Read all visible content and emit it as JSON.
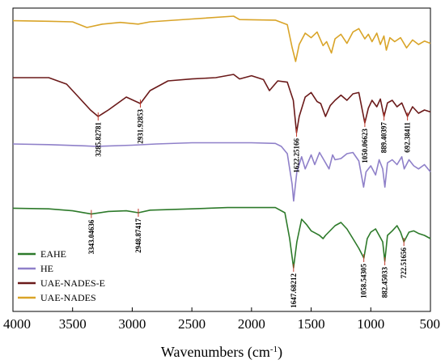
{
  "chart_data": {
    "type": "line",
    "xlabel": "Wavenumbers (cm",
    "xlabel_sup": "-1",
    "xlabel_end": ")",
    "xlim": [
      4000,
      500
    ],
    "x_reversed": true,
    "x_ticks": [
      4000,
      3500,
      3000,
      2500,
      2000,
      1500,
      1000,
      500
    ],
    "y_axis_visible": false,
    "grid": false,
    "legend_position": "bottom-left",
    "series": [
      {
        "name": "UAE-NADES",
        "color": "#d9a428",
        "points": [
          [
            4000,
            0.92
          ],
          [
            3700,
            0.91
          ],
          [
            3500,
            0.9
          ],
          [
            3380,
            0.8
          ],
          [
            3250,
            0.86
          ],
          [
            3100,
            0.89
          ],
          [
            2950,
            0.86
          ],
          [
            2850,
            0.9
          ],
          [
            2500,
            0.95
          ],
          [
            2150,
            1.0
          ],
          [
            2100,
            0.94
          ],
          [
            1800,
            0.93
          ],
          [
            1700,
            0.85
          ],
          [
            1660,
            0.45
          ],
          [
            1630,
            0.2
          ],
          [
            1600,
            0.5
          ],
          [
            1550,
            0.7
          ],
          [
            1500,
            0.62
          ],
          [
            1450,
            0.72
          ],
          [
            1400,
            0.48
          ],
          [
            1370,
            0.55
          ],
          [
            1330,
            0.35
          ],
          [
            1300,
            0.6
          ],
          [
            1250,
            0.68
          ],
          [
            1200,
            0.52
          ],
          [
            1150,
            0.72
          ],
          [
            1100,
            0.78
          ],
          [
            1050,
            0.6
          ],
          [
            1020,
            0.68
          ],
          [
            990,
            0.55
          ],
          [
            950,
            0.7
          ],
          [
            920,
            0.5
          ],
          [
            890,
            0.65
          ],
          [
            870,
            0.4
          ],
          [
            840,
            0.62
          ],
          [
            800,
            0.55
          ],
          [
            750,
            0.62
          ],
          [
            700,
            0.44
          ],
          [
            650,
            0.58
          ],
          [
            600,
            0.5
          ],
          [
            550,
            0.56
          ],
          [
            500,
            0.52
          ]
        ]
      },
      {
        "name": "UAE-NADES-E",
        "color": "#6b1a1a",
        "points": [
          [
            4000,
            0.95
          ],
          [
            3700,
            0.95
          ],
          [
            3550,
            0.85
          ],
          [
            3450,
            0.65
          ],
          [
            3350,
            0.45
          ],
          [
            3285.83,
            0.35
          ],
          [
            3200,
            0.45
          ],
          [
            3050,
            0.65
          ],
          [
            2931.93,
            0.55
          ],
          [
            2850,
            0.75
          ],
          [
            2700,
            0.9
          ],
          [
            2500,
            0.93
          ],
          [
            2300,
            0.95
          ],
          [
            2150,
            1.0
          ],
          [
            2100,
            0.93
          ],
          [
            2000,
            0.98
          ],
          [
            1900,
            0.92
          ],
          [
            1850,
            0.75
          ],
          [
            1780,
            0.9
          ],
          [
            1700,
            0.88
          ],
          [
            1650,
            0.6
          ],
          [
            1622.25,
            0.1
          ],
          [
            1600,
            0.35
          ],
          [
            1550,
            0.65
          ],
          [
            1500,
            0.72
          ],
          [
            1450,
            0.58
          ],
          [
            1420,
            0.55
          ],
          [
            1380,
            0.35
          ],
          [
            1340,
            0.52
          ],
          [
            1300,
            0.6
          ],
          [
            1250,
            0.68
          ],
          [
            1200,
            0.6
          ],
          [
            1150,
            0.7
          ],
          [
            1100,
            0.72
          ],
          [
            1050.07,
            0.25
          ],
          [
            1020,
            0.48
          ],
          [
            990,
            0.6
          ],
          [
            950,
            0.5
          ],
          [
            920,
            0.62
          ],
          [
            889.4,
            0.35
          ],
          [
            860,
            0.56
          ],
          [
            820,
            0.6
          ],
          [
            780,
            0.5
          ],
          [
            740,
            0.56
          ],
          [
            692.38,
            0.35
          ],
          [
            650,
            0.5
          ],
          [
            600,
            0.4
          ],
          [
            550,
            0.45
          ],
          [
            500,
            0.42
          ]
        ]
      },
      {
        "name": "HE",
        "color": "#8f80c9",
        "points": [
          [
            4000,
            0.96
          ],
          [
            3700,
            0.95
          ],
          [
            3400,
            0.93
          ],
          [
            3300,
            0.92
          ],
          [
            3000,
            0.94
          ],
          [
            2800,
            0.96
          ],
          [
            2500,
            0.98
          ],
          [
            2200,
            0.98
          ],
          [
            2000,
            0.98
          ],
          [
            1800,
            0.97
          ],
          [
            1750,
            0.92
          ],
          [
            1700,
            0.8
          ],
          [
            1660,
            0.3
          ],
          [
            1647,
            0.02
          ],
          [
            1620,
            0.5
          ],
          [
            1580,
            0.75
          ],
          [
            1550,
            0.55
          ],
          [
            1500,
            0.78
          ],
          [
            1470,
            0.62
          ],
          [
            1430,
            0.82
          ],
          [
            1400,
            0.72
          ],
          [
            1350,
            0.55
          ],
          [
            1320,
            0.78
          ],
          [
            1300,
            0.7
          ],
          [
            1250,
            0.72
          ],
          [
            1200,
            0.8
          ],
          [
            1150,
            0.82
          ],
          [
            1100,
            0.68
          ],
          [
            1060,
            0.25
          ],
          [
            1040,
            0.5
          ],
          [
            1000,
            0.6
          ],
          [
            960,
            0.45
          ],
          [
            930,
            0.7
          ],
          [
            900,
            0.55
          ],
          [
            882,
            0.25
          ],
          [
            860,
            0.65
          ],
          [
            820,
            0.7
          ],
          [
            780,
            0.62
          ],
          [
            740,
            0.75
          ],
          [
            720,
            0.55
          ],
          [
            680,
            0.7
          ],
          [
            640,
            0.6
          ],
          [
            600,
            0.55
          ],
          [
            550,
            0.62
          ],
          [
            500,
            0.5
          ]
        ]
      },
      {
        "name": "EAHE",
        "color": "#2d7a2a",
        "points": [
          [
            4000,
            0.97
          ],
          [
            3700,
            0.96
          ],
          [
            3500,
            0.93
          ],
          [
            3343.05,
            0.88
          ],
          [
            3200,
            0.92
          ],
          [
            3050,
            0.93
          ],
          [
            2948.87,
            0.9
          ],
          [
            2850,
            0.94
          ],
          [
            2500,
            0.96
          ],
          [
            2200,
            0.98
          ],
          [
            2000,
            0.98
          ],
          [
            1800,
            0.98
          ],
          [
            1720,
            0.9
          ],
          [
            1680,
            0.5
          ],
          [
            1647.68,
            0.05
          ],
          [
            1620,
            0.45
          ],
          [
            1580,
            0.8
          ],
          [
            1540,
            0.72
          ],
          [
            1500,
            0.62
          ],
          [
            1460,
            0.58
          ],
          [
            1430,
            0.55
          ],
          [
            1400,
            0.5
          ],
          [
            1380,
            0.55
          ],
          [
            1300,
            0.7
          ],
          [
            1250,
            0.75
          ],
          [
            1200,
            0.65
          ],
          [
            1150,
            0.5
          ],
          [
            1100,
            0.35
          ],
          [
            1058.54,
            0.2
          ],
          [
            1030,
            0.5
          ],
          [
            1000,
            0.6
          ],
          [
            960,
            0.65
          ],
          [
            930,
            0.55
          ],
          [
            900,
            0.45
          ],
          [
            882.45,
            0.15
          ],
          [
            860,
            0.55
          ],
          [
            820,
            0.62
          ],
          [
            780,
            0.7
          ],
          [
            750,
            0.6
          ],
          [
            722.52,
            0.45
          ],
          [
            680,
            0.6
          ],
          [
            640,
            0.62
          ],
          [
            600,
            0.58
          ],
          [
            550,
            0.55
          ],
          [
            500,
            0.5
          ]
        ]
      }
    ],
    "annotations": [
      {
        "series": "UAE-NADES-E",
        "x": 3285.83,
        "label": "3285.82781"
      },
      {
        "series": "UAE-NADES-E",
        "x": 2931.93,
        "label": "2931.92853"
      },
      {
        "series": "UAE-NADES-E",
        "x": 1622.25,
        "label": "1622.25166"
      },
      {
        "series": "UAE-NADES-E",
        "x": 1050.07,
        "label": "1050.06623"
      },
      {
        "series": "UAE-NADES-E",
        "x": 889.4,
        "label": "889.40397"
      },
      {
        "series": "UAE-NADES-E",
        "x": 692.38,
        "label": "692.38411"
      },
      {
        "series": "EAHE",
        "x": 3343.05,
        "label": "3343.04636"
      },
      {
        "series": "EAHE",
        "x": 2948.87,
        "label": "2948.87417"
      },
      {
        "series": "EAHE",
        "x": 1647.68,
        "label": "1647.68212"
      },
      {
        "series": "EAHE",
        "x": 1058.54,
        "label": "1058.54305"
      },
      {
        "series": "EAHE",
        "x": 882.45,
        "label": "882.45033"
      },
      {
        "series": "EAHE",
        "x": 722.52,
        "label": "722.51656"
      }
    ],
    "legend": [
      "EAHE",
      "HE",
      "UAE-NADES-E",
      "UAE-NADES"
    ]
  }
}
